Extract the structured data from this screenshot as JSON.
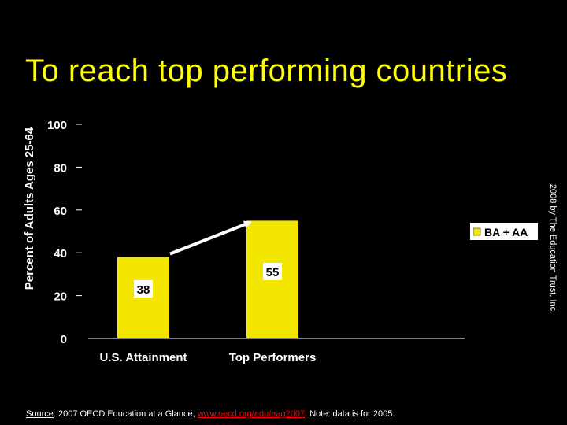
{
  "title": "To reach top performing countries",
  "copyright": "2008 by The Education Trust, Inc.",
  "source": {
    "label": "Source",
    "text1": ":  2007 OECD Education at a Glance, ",
    "link": "www.oecd.org/edu/eag2007",
    "text2": ".  Note: data is for 2005."
  },
  "colors": {
    "background": "#000000",
    "title": "#ffff00",
    "bar": "#f2e600",
    "text": "#ffffff",
    "link": "#ff0000"
  },
  "chart_data": {
    "type": "bar",
    "categories": [
      "U.S. Attainment",
      "Top Performers"
    ],
    "series": [
      {
        "name": "BA + AA",
        "values": [
          38,
          55
        ]
      }
    ],
    "data_labels": [
      "38",
      "55"
    ],
    "ylabel": "Percent of Adults Ages 25-64",
    "ylim": [
      0,
      100
    ],
    "yticks": [
      0,
      20,
      40,
      60,
      80,
      100
    ],
    "legend": "right",
    "grid": false,
    "annotation": "arrow from U.S. Attainment bar to Top Performers bar"
  }
}
